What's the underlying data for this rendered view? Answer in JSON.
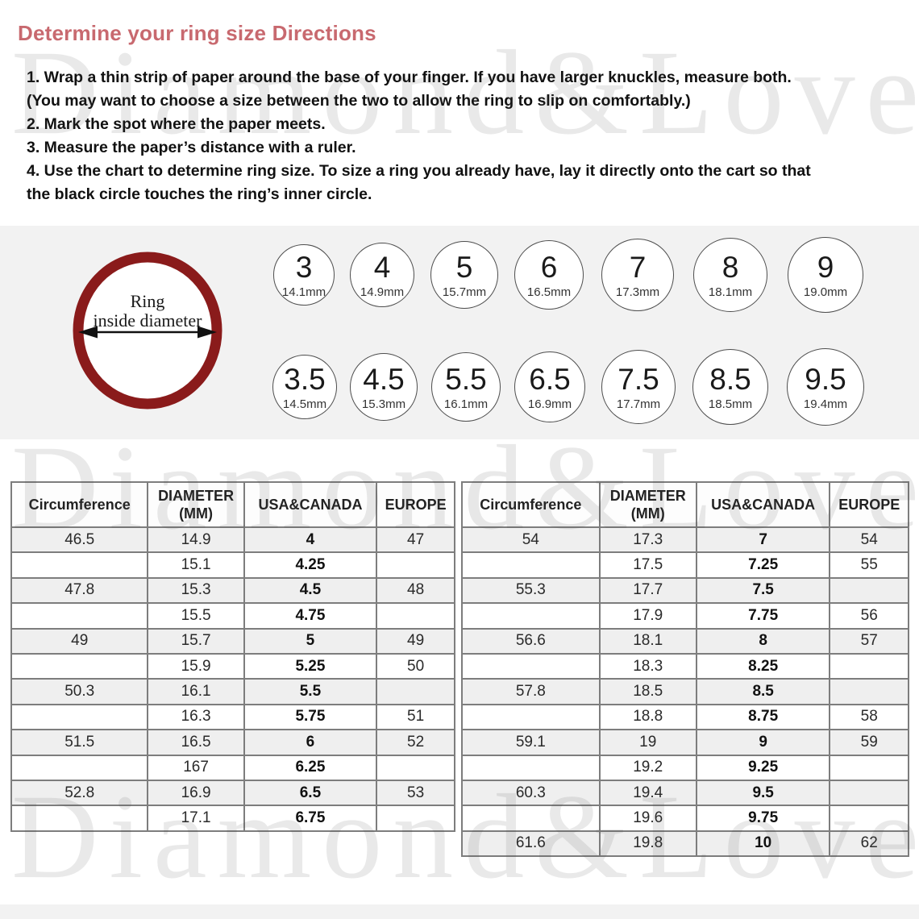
{
  "page": {
    "title": "Determine your ring size Directions",
    "instruction_lines": [
      "1. Wrap a thin strip of paper around the base of your finger. If you have larger knuckles, measure both.",
      "(You may want to choose a size between the two to allow the ring to slip on comfortably.)",
      "2. Mark the spot where the paper meets.",
      "3. Measure the paper’s distance with a ruler.",
      "4. Use the chart to determine ring size. To size a ring you already have, lay it directly onto the cart so that",
      "the black circle touches the ring’s inner circle."
    ]
  },
  "diagram": {
    "label_line1": "Ring",
    "label_line2": "inside diameter",
    "ring_color": "#8a1b1b",
    "arrow_color": "#111111"
  },
  "size_circles": {
    "row1": [
      {
        "size": "3",
        "diameter": "14.1mm"
      },
      {
        "size": "4",
        "diameter": "14.9mm"
      },
      {
        "size": "5",
        "diameter": "15.7mm"
      },
      {
        "size": "6",
        "diameter": "16.5mm"
      },
      {
        "size": "7",
        "diameter": "17.3mm"
      },
      {
        "size": "8",
        "diameter": "18.1mm"
      },
      {
        "size": "9",
        "diameter": "19.0mm"
      }
    ],
    "row2": [
      {
        "size": "3.5",
        "diameter": "14.5mm"
      },
      {
        "size": "4.5",
        "diameter": "15.3mm"
      },
      {
        "size": "5.5",
        "diameter": "16.1mm"
      },
      {
        "size": "6.5",
        "diameter": "16.9mm"
      },
      {
        "size": "7.5",
        "diameter": "17.7mm"
      },
      {
        "size": "8.5",
        "diameter": "18.5mm"
      },
      {
        "size": "9.5",
        "diameter": "19.4mm"
      }
    ]
  },
  "tables": {
    "headers": [
      "Circumference",
      "DIAMETER\n(MM)",
      "USA&CANADA",
      "EUROPE"
    ],
    "left_rows": [
      [
        "46.5",
        "14.9",
        "4",
        "47"
      ],
      [
        "",
        "15.1",
        "4.25",
        ""
      ],
      [
        "47.8",
        "15.3",
        "4.5",
        "48"
      ],
      [
        "",
        "15.5",
        "4.75",
        ""
      ],
      [
        "49",
        "15.7",
        "5",
        "49"
      ],
      [
        "",
        "15.9",
        "5.25",
        "50"
      ],
      [
        "50.3",
        "16.1",
        "5.5",
        ""
      ],
      [
        "",
        "16.3",
        "5.75",
        "51"
      ],
      [
        "51.5",
        "16.5",
        "6",
        "52"
      ],
      [
        "",
        "167",
        "6.25",
        ""
      ],
      [
        "52.8",
        "16.9",
        "6.5",
        "53"
      ],
      [
        "",
        "17.1",
        "6.75",
        ""
      ]
    ],
    "right_rows": [
      [
        "54",
        "17.3",
        "7",
        "54"
      ],
      [
        "",
        "17.5",
        "7.25",
        "55"
      ],
      [
        "55.3",
        "17.7",
        "7.5",
        ""
      ],
      [
        "",
        "17.9",
        "7.75",
        "56"
      ],
      [
        "56.6",
        "18.1",
        "8",
        "57"
      ],
      [
        "",
        "18.3",
        "8.25",
        ""
      ],
      [
        "57.8",
        "18.5",
        "8.5",
        ""
      ],
      [
        "",
        "18.8",
        "8.75",
        "58"
      ],
      [
        "59.1",
        "19",
        "9",
        "59"
      ],
      [
        "",
        "19.2",
        "9.25",
        ""
      ],
      [
        "60.3",
        "19.4",
        "9.5",
        ""
      ],
      [
        "",
        "19.6",
        "9.75",
        ""
      ],
      [
        "61.6",
        "19.8",
        "10",
        "62"
      ]
    ]
  },
  "watermark": {
    "text": "Diamond&Love"
  },
  "colors": {
    "title": "#c8696f",
    "ring": "#8a1b1b",
    "panel_gray": "#f2f2f2",
    "row_stripe": "#efefef",
    "table_border": "#7d7d7d"
  }
}
